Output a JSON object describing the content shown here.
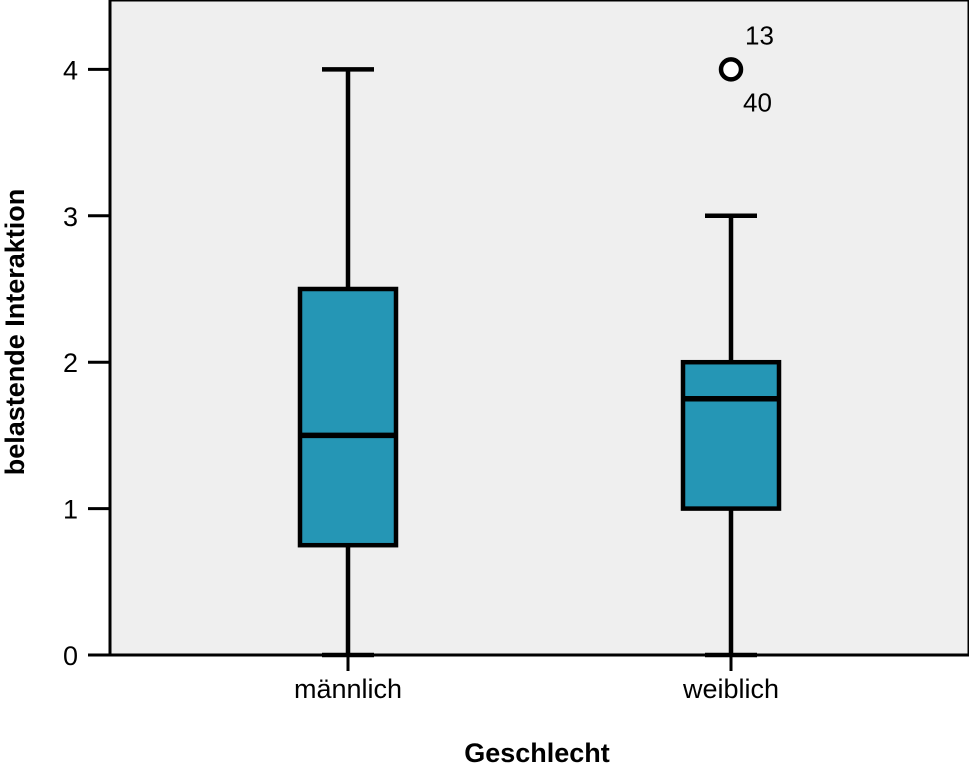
{
  "chart_data": {
    "type": "boxplot",
    "xlabel": "Geschlecht",
    "ylabel": "belastende Interaktion",
    "ylim": [
      0,
      4.35
    ],
    "yticks": [
      0,
      1,
      2,
      3,
      4
    ],
    "grid": false,
    "colors": {
      "box": "#2596b5",
      "plot_bg": "#efefef",
      "stroke": "#000000"
    },
    "categories": [
      "männlich",
      "weiblich"
    ],
    "boxes": [
      {
        "category": "männlich",
        "min": 0,
        "q1": 0.75,
        "median": 1.5,
        "q3": 2.5,
        "max": 4,
        "outliers": []
      },
      {
        "category": "weiblich",
        "min": 0,
        "q1": 1,
        "median": 1.75,
        "q3": 2,
        "max": 3,
        "outliers": [
          {
            "value": 4,
            "labels": [
              "13",
              "40"
            ]
          }
        ]
      }
    ]
  }
}
